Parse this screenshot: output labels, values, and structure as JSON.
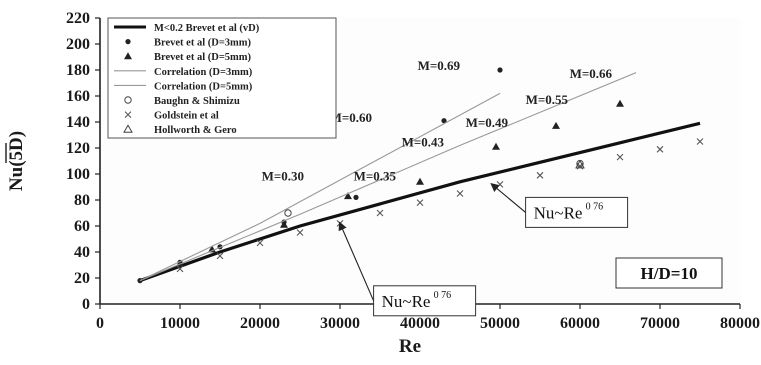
{
  "chart_data": {
    "type": "scatter",
    "title": "",
    "xlabel": "Re",
    "ylabel": "Nu(5D)",
    "xlim": [
      0,
      80000
    ],
    "ylim": [
      0,
      220
    ],
    "x_ticks": [
      0,
      10000,
      20000,
      30000,
      40000,
      50000,
      60000,
      70000,
      80000
    ],
    "y_ticks": [
      0,
      20,
      40,
      60,
      80,
      100,
      120,
      140,
      160,
      180,
      200,
      220
    ],
    "grid": false,
    "legend_position": "top-left",
    "series": [
      {
        "name": "M<0.2 Brevet et al (vD)",
        "style": "line-thick",
        "x": [
          5000,
          15000,
          25000,
          35000,
          45000,
          55000,
          65000,
          75000
        ],
        "y": [
          18,
          40,
          60,
          77,
          94,
          109,
          124,
          139
        ]
      },
      {
        "name": "Brevet et al (D=3mm)",
        "style": "dot",
        "x": [
          5000,
          10000,
          15000,
          23000,
          32000,
          43000,
          50000
        ],
        "y": [
          18,
          32,
          44,
          63,
          82,
          141,
          180
        ]
      },
      {
        "name": "Brevet et al (D=5mm)",
        "style": "triangle",
        "x": [
          10000,
          14000,
          23000,
          31000,
          40000,
          49500,
          57000,
          65000
        ],
        "y": [
          31,
          42,
          61,
          83,
          94,
          121,
          137,
          154
        ]
      },
      {
        "name": "Correlation (D=3mm)",
        "style": "line-thin",
        "x": [
          5000,
          20000,
          35000,
          50000
        ],
        "y": [
          18,
          62,
          112,
          162
        ]
      },
      {
        "name": "Correlation (D=5mm)",
        "style": "line-thin",
        "x": [
          5000,
          25000,
          45000,
          67000
        ],
        "y": [
          18,
          69,
          122,
          178
        ]
      },
      {
        "name": "Baughn & Shimizu",
        "style": "circle-open",
        "x": [
          23500,
          60000
        ],
        "y": [
          70,
          108
        ]
      },
      {
        "name": "Goldstein et al",
        "style": "cross",
        "x": [
          10000,
          15000,
          20000,
          25000,
          30000,
          35000,
          40000,
          45000,
          50000,
          55000,
          60000,
          65000,
          70000,
          75000
        ],
        "y": [
          27,
          37,
          47,
          55,
          62,
          70,
          78,
          85,
          92,
          99,
          106,
          113,
          119,
          125
        ]
      },
      {
        "name": "Hollworth & Gero",
        "style": "triangle-open",
        "x": [
          60000
        ],
        "y": [
          107
        ]
      }
    ],
    "annotations": [
      {
        "text": "M=0.69",
        "x": 45000,
        "y": 180
      },
      {
        "text": "M=0.60",
        "x": 34000,
        "y": 140
      },
      {
        "text": "M=0.43",
        "x": 43000,
        "y": 121
      },
      {
        "text": "M=0.49",
        "x": 51000,
        "y": 136
      },
      {
        "text": "M=0.55",
        "x": 58500,
        "y": 154
      },
      {
        "text": "M=0.66",
        "x": 64000,
        "y": 174
      },
      {
        "text": "M=0.30",
        "x": 25500,
        "y": 95
      },
      {
        "text": "M=0.35",
        "x": 37000,
        "y": 95
      }
    ],
    "callouts": [
      {
        "text": "Nu~Re",
        "exponent": "0 76",
        "box_x": 53200,
        "box_y": 82,
        "target_x": 49000,
        "target_y": 92
      },
      {
        "text": "Nu~Re",
        "exponent": "0 76",
        "box_x": 34200,
        "box_y": 14,
        "target_x": 30000,
        "target_y": 62
      }
    ],
    "condition_label": "H/D=10"
  }
}
